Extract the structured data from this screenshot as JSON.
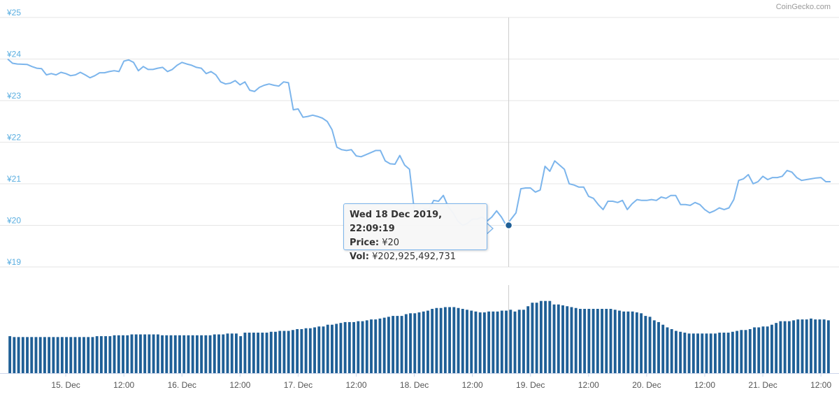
{
  "credit": "CoinGecko.com",
  "tooltip": {
    "date": "Wed 18 Dec 2019, 22:09:19",
    "price_label": "Price:",
    "price_value": "¥20",
    "vol_label": "Vol:",
    "vol_value": "¥202,925,492,731"
  },
  "colors": {
    "price_line": "#7cb5ec",
    "volume_bar": "#1f5f96",
    "grid": "#e6e6e6",
    "axis_label_y": "#5aaee0",
    "axis_label_x": "#555555",
    "crosshair": "#cccccc",
    "marker": "#1f5f96"
  },
  "chart_data": {
    "type": "line",
    "title": "",
    "ylabel": "",
    "xlabel": "",
    "ylim": [
      19,
      25
    ],
    "y_ticks": [
      "¥25",
      "¥24",
      "¥23",
      "¥22",
      "¥21",
      "¥20",
      "¥19"
    ],
    "y_tick_values": [
      25,
      24,
      23,
      22,
      21,
      20,
      19
    ],
    "x_ticks": [
      "15. Dec",
      "12:00",
      "16. Dec",
      "12:00",
      "17. Dec",
      "12:00",
      "18. Dec",
      "12:00",
      "19. Dec",
      "12:00",
      "20. Dec",
      "12:00",
      "21. Dec",
      "12:00"
    ],
    "x_tick_hours": [
      12,
      24,
      36,
      48,
      60,
      72,
      84,
      96,
      108,
      120,
      132,
      144,
      156,
      168
    ],
    "xlim_hours": [
      0,
      170
    ],
    "x_start": "14 Dec 2019, 12:00",
    "price_points": [
      [
        0,
        24.0
      ],
      [
        1,
        23.9
      ],
      [
        2,
        23.88
      ],
      [
        4,
        23.87
      ],
      [
        5,
        23.82
      ],
      [
        6,
        23.78
      ],
      [
        7,
        23.77
      ],
      [
        8,
        23.62
      ],
      [
        9,
        23.65
      ],
      [
        10,
        23.62
      ],
      [
        11,
        23.68
      ],
      [
        12,
        23.65
      ],
      [
        13,
        23.6
      ],
      [
        14,
        23.62
      ],
      [
        15,
        23.68
      ],
      [
        16,
        23.62
      ],
      [
        17,
        23.55
      ],
      [
        18,
        23.6
      ],
      [
        19,
        23.67
      ],
      [
        20,
        23.67
      ],
      [
        21,
        23.7
      ],
      [
        22,
        23.72
      ],
      [
        23,
        23.7
      ],
      [
        24,
        23.95
      ],
      [
        25,
        23.98
      ],
      [
        26,
        23.92
      ],
      [
        27,
        23.72
      ],
      [
        28,
        23.82
      ],
      [
        29,
        23.75
      ],
      [
        30,
        23.75
      ],
      [
        31,
        23.78
      ],
      [
        32,
        23.8
      ],
      [
        33,
        23.7
      ],
      [
        34,
        23.75
      ],
      [
        35,
        23.85
      ],
      [
        36,
        23.92
      ],
      [
        37,
        23.88
      ],
      [
        38,
        23.85
      ],
      [
        39,
        23.8
      ],
      [
        40,
        23.78
      ],
      [
        41,
        23.65
      ],
      [
        42,
        23.7
      ],
      [
        43,
        23.62
      ],
      [
        44,
        23.45
      ],
      [
        45,
        23.4
      ],
      [
        46,
        23.42
      ],
      [
        47,
        23.48
      ],
      [
        48,
        23.38
      ],
      [
        49,
        23.45
      ],
      [
        50,
        23.25
      ],
      [
        51,
        23.22
      ],
      [
        52,
        23.32
      ],
      [
        53,
        23.37
      ],
      [
        54,
        23.4
      ],
      [
        55,
        23.37
      ],
      [
        56,
        23.35
      ],
      [
        57,
        23.45
      ],
      [
        58,
        23.43
      ],
      [
        59,
        22.78
      ],
      [
        60,
        22.8
      ],
      [
        61,
        22.6
      ],
      [
        62,
        22.62
      ],
      [
        63,
        22.65
      ],
      [
        64,
        22.62
      ],
      [
        65,
        22.58
      ],
      [
        66,
        22.5
      ],
      [
        67,
        22.3
      ],
      [
        68,
        21.88
      ],
      [
        69,
        21.82
      ],
      [
        70,
        21.8
      ],
      [
        71,
        21.82
      ],
      [
        72,
        21.67
      ],
      [
        73,
        21.65
      ],
      [
        74,
        21.7
      ],
      [
        75,
        21.75
      ],
      [
        76,
        21.8
      ],
      [
        77,
        21.8
      ],
      [
        78,
        21.55
      ],
      [
        79,
        21.48
      ],
      [
        80,
        21.47
      ],
      [
        81,
        21.68
      ],
      [
        82,
        21.45
      ],
      [
        83,
        21.35
      ],
      [
        84,
        20.35
      ],
      [
        85,
        20.3
      ],
      [
        86,
        20.4
      ],
      [
        87,
        20.38
      ],
      [
        88,
        20.6
      ],
      [
        89,
        20.58
      ],
      [
        90,
        20.72
      ],
      [
        91,
        20.45
      ],
      [
        92,
        20.3
      ],
      [
        93,
        20.1
      ],
      [
        94,
        20.0
      ],
      [
        95,
        20.05
      ],
      [
        96,
        20.15
      ],
      [
        97,
        20.15
      ],
      [
        98,
        20.2
      ],
      [
        99,
        20.1
      ],
      [
        100,
        20.2
      ],
      [
        101,
        20.35
      ],
      [
        102,
        20.2
      ],
      [
        103,
        20.0
      ],
      [
        104,
        20.15
      ],
      [
        105,
        20.3
      ],
      [
        106,
        20.88
      ],
      [
        107,
        20.9
      ],
      [
        108,
        20.9
      ],
      [
        109,
        20.8
      ],
      [
        110,
        20.85
      ],
      [
        111,
        21.42
      ],
      [
        112,
        21.3
      ],
      [
        113,
        21.55
      ],
      [
        114,
        21.45
      ],
      [
        115,
        21.35
      ],
      [
        116,
        21.0
      ],
      [
        117,
        20.97
      ],
      [
        118,
        20.92
      ],
      [
        119,
        20.92
      ],
      [
        120,
        20.7
      ],
      [
        121,
        20.65
      ],
      [
        122,
        20.5
      ],
      [
        123,
        20.38
      ],
      [
        124,
        20.58
      ],
      [
        125,
        20.58
      ],
      [
        126,
        20.55
      ],
      [
        127,
        20.6
      ],
      [
        128,
        20.38
      ],
      [
        129,
        20.52
      ],
      [
        130,
        20.62
      ],
      [
        131,
        20.6
      ],
      [
        132,
        20.6
      ],
      [
        133,
        20.62
      ],
      [
        134,
        20.6
      ],
      [
        135,
        20.68
      ],
      [
        136,
        20.65
      ],
      [
        137,
        20.72
      ],
      [
        138,
        20.72
      ],
      [
        139,
        20.5
      ],
      [
        140,
        20.5
      ],
      [
        141,
        20.48
      ],
      [
        142,
        20.55
      ],
      [
        143,
        20.5
      ],
      [
        144,
        20.38
      ],
      [
        145,
        20.3
      ],
      [
        146,
        20.35
      ],
      [
        147,
        20.42
      ],
      [
        148,
        20.38
      ],
      [
        149,
        20.42
      ],
      [
        150,
        20.62
      ],
      [
        151,
        21.08
      ],
      [
        152,
        21.12
      ],
      [
        153,
        21.22
      ],
      [
        154,
        21.0
      ],
      [
        155,
        21.05
      ],
      [
        156,
        21.18
      ],
      [
        157,
        21.1
      ],
      [
        158,
        21.15
      ],
      [
        159,
        21.15
      ],
      [
        160,
        21.18
      ],
      [
        161,
        21.32
      ],
      [
        162,
        21.28
      ],
      [
        163,
        21.15
      ],
      [
        164,
        21.08
      ],
      [
        165,
        21.1
      ],
      [
        166,
        21.12
      ],
      [
        167,
        21.14
      ],
      [
        168,
        21.15
      ],
      [
        169,
        21.05
      ],
      [
        170,
        21.05
      ]
    ],
    "highlight_point": {
      "hour": 103.5,
      "value": 20.0
    },
    "volume_scale_max": 1,
    "volume_values": [
      0.42,
      0.41,
      0.41,
      0.41,
      0.41,
      0.41,
      0.41,
      0.41,
      0.41,
      0.41,
      0.41,
      0.41,
      0.41,
      0.41,
      0.41,
      0.41,
      0.41,
      0.41,
      0.41,
      0.41,
      0.42,
      0.42,
      0.42,
      0.42,
      0.43,
      0.43,
      0.43,
      0.43,
      0.44,
      0.44,
      0.44,
      0.44,
      0.44,
      0.44,
      0.44,
      0.43,
      0.43,
      0.43,
      0.43,
      0.43,
      0.43,
      0.43,
      0.43,
      0.43,
      0.43,
      0.43,
      0.43,
      0.44,
      0.44,
      0.44,
      0.45,
      0.45,
      0.45,
      0.42,
      0.46,
      0.46,
      0.46,
      0.46,
      0.46,
      0.46,
      0.47,
      0.47,
      0.48,
      0.48,
      0.48,
      0.49,
      0.5,
      0.5,
      0.51,
      0.51,
      0.52,
      0.53,
      0.53,
      0.55,
      0.55,
      0.56,
      0.57,
      0.58,
      0.58,
      0.58,
      0.59,
      0.59,
      0.6,
      0.61,
      0.61,
      0.62,
      0.63,
      0.64,
      0.65,
      0.65,
      0.65,
      0.67,
      0.68,
      0.68,
      0.69,
      0.7,
      0.71,
      0.73,
      0.74,
      0.74,
      0.75,
      0.75,
      0.75,
      0.74,
      0.73,
      0.72,
      0.71,
      0.7,
      0.69,
      0.69,
      0.7,
      0.7,
      0.7,
      0.71,
      0.71,
      0.72,
      0.7,
      0.72,
      0.72,
      0.76,
      0.8,
      0.8,
      0.82,
      0.82,
      0.82,
      0.78,
      0.78,
      0.77,
      0.76,
      0.75,
      0.74,
      0.73,
      0.73,
      0.73,
      0.73,
      0.73,
      0.73,
      0.73,
      0.73,
      0.72,
      0.71,
      0.7,
      0.7,
      0.7,
      0.69,
      0.68,
      0.65,
      0.64,
      0.6,
      0.58,
      0.55,
      0.52,
      0.5,
      0.48,
      0.47,
      0.46,
      0.45,
      0.45,
      0.45,
      0.45,
      0.45,
      0.45,
      0.45,
      0.46,
      0.46,
      0.46,
      0.47,
      0.48,
      0.49,
      0.49,
      0.5,
      0.52,
      0.52,
      0.53,
      0.53,
      0.55,
      0.57,
      0.59,
      0.59,
      0.59,
      0.6,
      0.61,
      0.61,
      0.61,
      0.62,
      0.61,
      0.61,
      0.61,
      0.6
    ]
  }
}
